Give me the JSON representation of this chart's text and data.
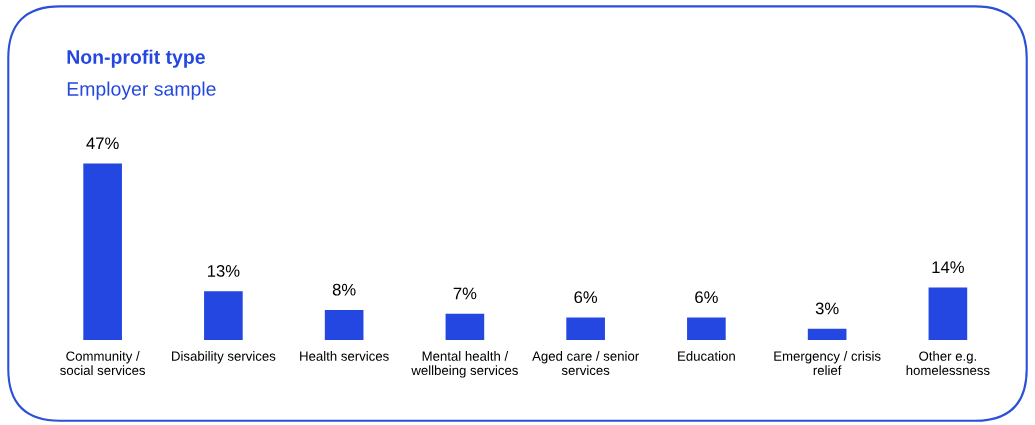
{
  "chart_data": {
    "type": "bar",
    "title": "Non-profit type",
    "subtitle": "Employer sample",
    "categories": [
      "Community /\nsocial services",
      "Disability services",
      "Health services",
      "Mental health /\nwellbeing services",
      "Aged care / senior\nservices",
      "Education",
      "Emergency / crisis\nrelief",
      "Other e.g.\nhomelessness"
    ],
    "values": [
      47,
      13,
      8,
      7,
      6,
      6,
      3,
      14
    ],
    "value_labels": [
      "47%",
      "13%",
      "8%",
      "7%",
      "6%",
      "6%",
      "3%",
      "14%"
    ],
    "color": "#2347e0",
    "grid": false,
    "legend": false
  }
}
